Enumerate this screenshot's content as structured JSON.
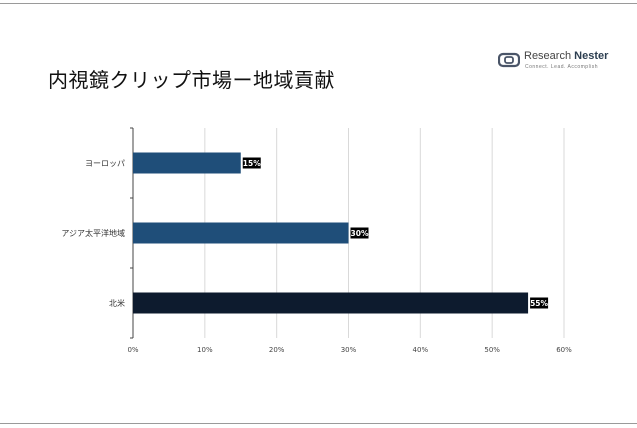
{
  "title": "内視鏡クリップ市場ー地域貢献",
  "brand": {
    "name_part1": "Research ",
    "name_part2": "Nester",
    "tagline": "Connect. Lead. Accomplish"
  },
  "colors": {
    "europe": "#1f4e79",
    "apac": "#1f4e79",
    "north_america": "#0d1b2e",
    "label_bg": "#000000",
    "grid": "#d9d9d9",
    "axis": "#444444"
  },
  "chart_data": {
    "type": "bar",
    "orientation": "horizontal",
    "categories": [
      "ヨーロッパ",
      "アジア太平洋地域",
      "北米"
    ],
    "values": [
      15,
      30,
      55
    ],
    "data_labels": [
      "15%",
      "30%",
      "55%"
    ],
    "xlim": [
      0,
      60
    ],
    "xticks": [
      "0%",
      "10%",
      "20%",
      "30%",
      "40%",
      "50%",
      "60%"
    ],
    "grid": true,
    "legend": "none"
  }
}
